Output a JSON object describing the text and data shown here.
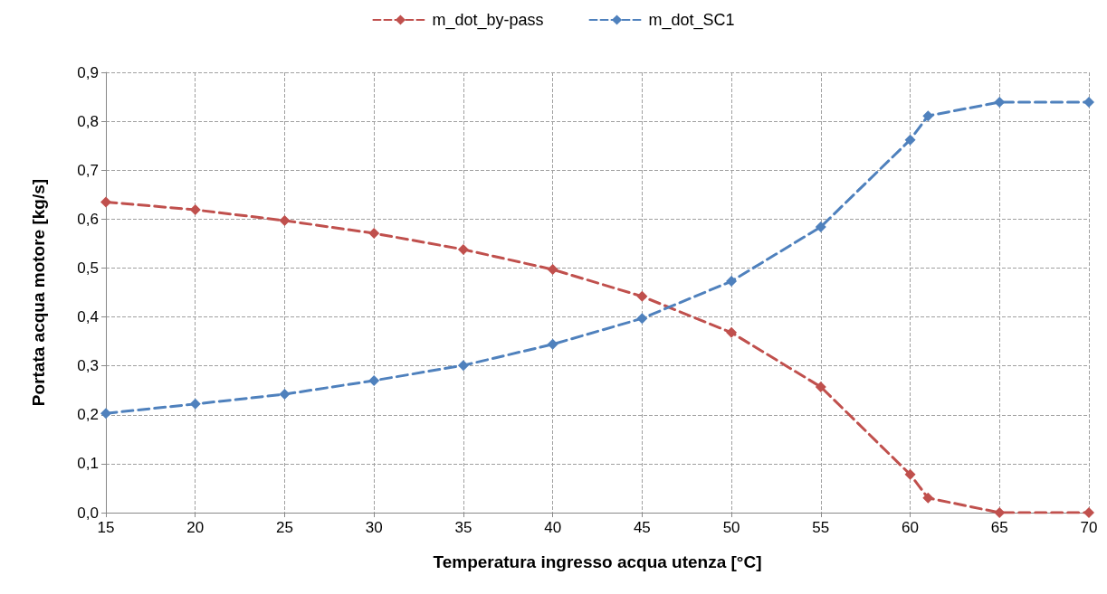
{
  "chart_data": {
    "type": "line",
    "xlabel": "Temperatura ingresso acqua utenza [°C]",
    "ylabel": "Portata acqua motore [kg/s]",
    "x": [
      15,
      20,
      25,
      30,
      35,
      40,
      45,
      50,
      55,
      60,
      61,
      65,
      70
    ],
    "series": [
      {
        "name": "m_dot_by-pass",
        "color": "#c0504d",
        "values": [
          0.635,
          0.619,
          0.597,
          0.571,
          0.538,
          0.497,
          0.442,
          0.368,
          0.257,
          0.078,
          0.03,
          0.0,
          0.0
        ]
      },
      {
        "name": "m_dot_SC1",
        "color": "#4f81bd",
        "values": [
          0.203,
          0.222,
          0.242,
          0.27,
          0.301,
          0.344,
          0.397,
          0.473,
          0.584,
          0.762,
          0.811,
          0.839,
          0.839
        ]
      }
    ],
    "xlim": [
      15,
      70
    ],
    "xticks": [
      15,
      20,
      25,
      30,
      35,
      40,
      45,
      50,
      55,
      60,
      65,
      70
    ],
    "ylim": [
      0,
      0.9
    ],
    "yticks": [
      {
        "value": 0,
        "label": "0,0"
      },
      {
        "value": 0.1,
        "label": "0,1"
      },
      {
        "value": 0.2,
        "label": "0,2"
      },
      {
        "value": 0.3,
        "label": "0,3"
      },
      {
        "value": 0.4,
        "label": "0,4"
      },
      {
        "value": 0.5,
        "label": "0,5"
      },
      {
        "value": 0.6,
        "label": "0,6"
      },
      {
        "value": 0.7,
        "label": "0,7"
      },
      {
        "value": 0.8,
        "label": "0,8"
      },
      {
        "value": 0.9,
        "label": "0,9"
      }
    ],
    "grid": true,
    "legend": "top",
    "marker": "diamond",
    "line_style": "dashed"
  }
}
